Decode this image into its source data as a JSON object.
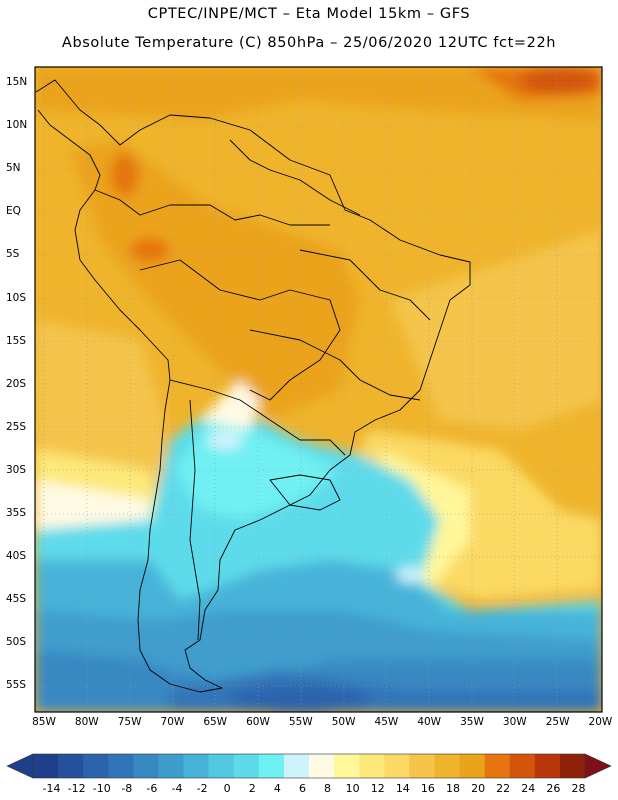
{
  "header": {
    "line1": "CPTEC/INPE/MCT –  Eta Model 15km – GFS",
    "line2": "Absolute Temperature (C) 850hPa – 25/06/2020 12UTC fct=22h"
  },
  "map": {
    "lat_labels": [
      "15N",
      "10N",
      "5N",
      "EQ",
      "5S",
      "10S",
      "15S",
      "20S",
      "25S",
      "30S",
      "35S",
      "40S",
      "45S",
      "50S",
      "55S"
    ],
    "lon_labels": [
      "85W",
      "80W",
      "75W",
      "70W",
      "65W",
      "60W",
      "55W",
      "50W",
      "45W",
      "40W",
      "35W",
      "30W",
      "25W",
      "20W"
    ]
  },
  "colorbar": {
    "labels": [
      "-14",
      "-12",
      "-10",
      "-8",
      "-6",
      "-4",
      "-2",
      "0",
      "2",
      "4",
      "6",
      "8",
      "10",
      "12",
      "14",
      "16",
      "18",
      "20",
      "22",
      "24",
      "26",
      "28"
    ],
    "colors": [
      "#1f3f8c",
      "#24509e",
      "#2b63ad",
      "#3175b8",
      "#3888c2",
      "#3f9dce",
      "#47b3d9",
      "#52c8e3",
      "#5ddbea",
      "#6ff0f2",
      "#cdf3fb",
      "#fffae4",
      "#fff79a",
      "#fde97a",
      "#fbd964",
      "#f4c44b",
      "#efb42c",
      "#eba31a",
      "#e5750e",
      "#d3540b",
      "#b8360a",
      "#8f200a"
    ]
  }
}
